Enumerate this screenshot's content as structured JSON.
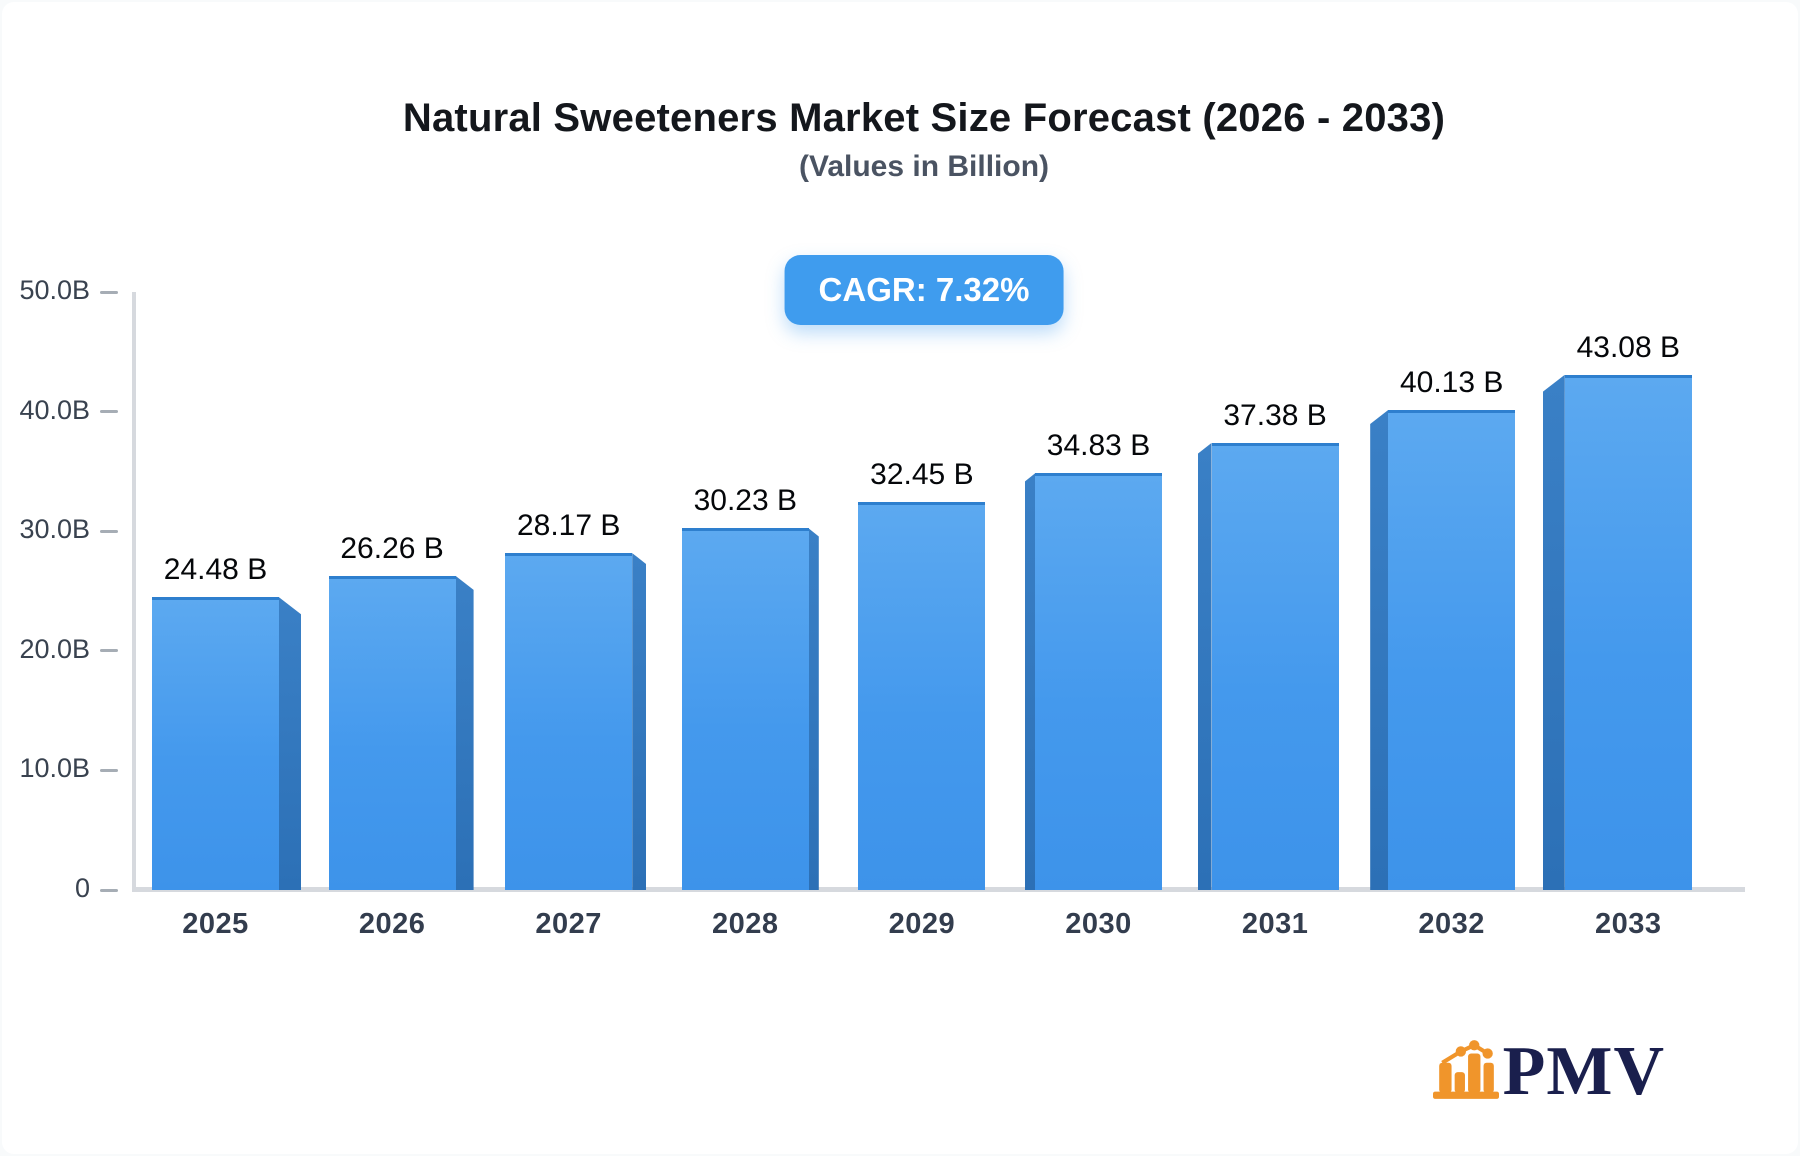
{
  "header": {
    "title": "Natural Sweeteners Market Size Forecast (2026 - 2033)",
    "subtitle": "(Values in Billion)",
    "cagr_badge": "CAGR: 7.32%"
  },
  "logo": {
    "text": "PMV",
    "icon": "bar-chart-logo-icon",
    "icon_color": "#F0952B",
    "text_color": "#1A1F4D"
  },
  "colors": {
    "bar_front_top": "#5CA9F0",
    "bar_front_bottom": "#3D93EA",
    "bar_side": "#2E75BD",
    "badge_bg": "#3F9CEE",
    "axis": "#D6D9DE",
    "tick": "#A6ADB5"
  },
  "chart_data": {
    "type": "bar",
    "title": "Natural Sweeteners Market Size Forecast (2026 - 2033)",
    "subtitle": "(Values in Billion)",
    "annotation": "CAGR: 7.32%",
    "categories": [
      "2025",
      "2026",
      "2027",
      "2028",
      "2029",
      "2030",
      "2031",
      "2032",
      "2033"
    ],
    "values": [
      24.48,
      26.26,
      28.17,
      30.23,
      32.45,
      34.83,
      37.38,
      40.13,
      43.08
    ],
    "value_labels": [
      "24.48 B",
      "26.26 B",
      "28.17 B",
      "30.23 B",
      "32.45 B",
      "34.83 B",
      "37.38 B",
      "40.13 B",
      "43.08 B"
    ],
    "xlabel": "",
    "ylabel": "",
    "ylim": [
      0,
      50
    ],
    "grid": false,
    "legend": false,
    "style": "3d-perspective-bars",
    "y_axis": {
      "ticks": [
        {
          "value": 0,
          "label": "0"
        },
        {
          "value": 10,
          "label": "10.0B"
        },
        {
          "value": 20,
          "label": "20.0B"
        },
        {
          "value": 30,
          "label": "30.0B"
        },
        {
          "value": 40,
          "label": "40.0B"
        },
        {
          "value": 50,
          "label": "50.0B"
        }
      ]
    }
  }
}
